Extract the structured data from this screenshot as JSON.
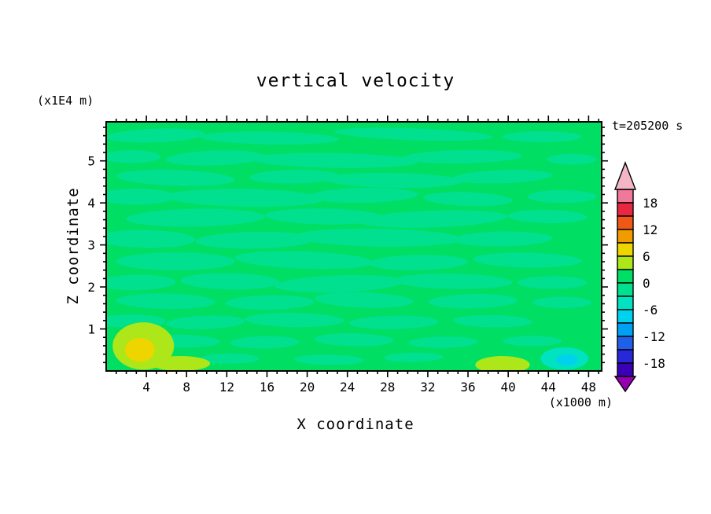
{
  "title": "vertical velocity",
  "time_label": "t=205200 s",
  "axes": {
    "x_label": "X coordinate",
    "y_label": "Z coordinate",
    "x_unit": "(x1000 m)",
    "y_unit": "(x1E4 m)"
  },
  "chart_data": {
    "type": "heatmap",
    "title": "vertical velocity",
    "xlabel": "X coordinate",
    "ylabel": "Z coordinate",
    "x_unit_scale": "(x1000 m)",
    "y_unit_scale": "(x1E4 m)",
    "time": "t=205200 s",
    "xlim": [
      0,
      49.3
    ],
    "ylim": [
      0,
      5.93
    ],
    "x_major_ticks": [
      4,
      8,
      12,
      16,
      20,
      24,
      28,
      32,
      36,
      40,
      44,
      48
    ],
    "x_minor_step": 1,
    "y_major_ticks": [
      1,
      2,
      3,
      4,
      5
    ],
    "y_minor_step": 0.2,
    "grid": false,
    "legend_position": "right-colorbar",
    "levels": [
      {
        "from": 18,
        "to": 21,
        "color": "#F07898"
      },
      {
        "from": 15,
        "to": 18,
        "color": "#E82840"
      },
      {
        "from": 12,
        "to": 15,
        "color": "#F05818"
      },
      {
        "from": 9,
        "to": 12,
        "color": "#F09C00"
      },
      {
        "from": 6,
        "to": 9,
        "color": "#EED500"
      },
      {
        "from": 3,
        "to": 6,
        "color": "#ADE619"
      },
      {
        "from": 0,
        "to": 3,
        "color": "#00DE64"
      },
      {
        "from": -3,
        "to": 0,
        "color": "#00E08E"
      },
      {
        "from": -6,
        "to": -3,
        "color": "#00E2C0"
      },
      {
        "from": -9,
        "to": -6,
        "color": "#00D2EE"
      },
      {
        "from": -12,
        "to": -9,
        "color": "#00A0F5"
      },
      {
        "from": -15,
        "to": -12,
        "color": "#2060E8"
      },
      {
        "from": -18,
        "to": -15,
        "color": "#2828D8"
      },
      {
        "from": -21,
        "to": -18,
        "color": "#3C00B4"
      }
    ],
    "colorbar": {
      "label_values": [
        "18",
        "12",
        "6",
        "0",
        "-6",
        "-12",
        "-18"
      ],
      "label_step": 6,
      "top_arrow_color": "#F2B6C6",
      "bottom_arrow_color": "#9400B0"
    },
    "field": {
      "description": "near-zero vertical velocity everywhere; weak positive anomaly (3-9) near x=3-5 z<1; weak negative anomaly (-3 to -9) near x=45 z<0.5",
      "background_level": 6,
      "blobs": [
        [
          0.1,
          0.055,
          0.1,
          0.028,
          -2,
          7
        ],
        [
          0.33,
          0.065,
          0.14,
          0.026,
          1,
          7
        ],
        [
          0.62,
          0.05,
          0.16,
          0.024,
          2,
          7
        ],
        [
          0.88,
          0.06,
          0.08,
          0.022,
          0,
          7
        ],
        [
          0.05,
          0.14,
          0.06,
          0.026,
          0,
          7
        ],
        [
          0.22,
          0.145,
          0.1,
          0.03,
          -2,
          7
        ],
        [
          0.46,
          0.155,
          0.17,
          0.03,
          1,
          7
        ],
        [
          0.72,
          0.14,
          0.12,
          0.027,
          -1,
          7
        ],
        [
          0.94,
          0.15,
          0.05,
          0.022,
          0,
          7
        ],
        [
          0.14,
          0.225,
          0.12,
          0.032,
          2,
          7
        ],
        [
          0.38,
          0.22,
          0.09,
          0.028,
          -1,
          7
        ],
        [
          0.58,
          0.235,
          0.14,
          0.03,
          1,
          7
        ],
        [
          0.8,
          0.22,
          0.1,
          0.027,
          -2,
          7
        ],
        [
          0.06,
          0.3,
          0.08,
          0.032,
          0,
          7
        ],
        [
          0.28,
          0.305,
          0.16,
          0.036,
          1,
          7
        ],
        [
          0.52,
          0.295,
          0.11,
          0.03,
          -1,
          7
        ],
        [
          0.73,
          0.31,
          0.09,
          0.028,
          2,
          7
        ],
        [
          0.92,
          0.3,
          0.07,
          0.026,
          0,
          7
        ],
        [
          0.18,
          0.385,
          0.14,
          0.036,
          -1,
          7
        ],
        [
          0.44,
          0.38,
          0.12,
          0.032,
          1,
          7
        ],
        [
          0.66,
          0.39,
          0.15,
          0.034,
          -2,
          7
        ],
        [
          0.89,
          0.38,
          0.08,
          0.027,
          1,
          7
        ],
        [
          0.08,
          0.47,
          0.1,
          0.036,
          1,
          7
        ],
        [
          0.3,
          0.475,
          0.12,
          0.034,
          -1,
          7
        ],
        [
          0.55,
          0.465,
          0.17,
          0.036,
          1,
          7
        ],
        [
          0.8,
          0.47,
          0.1,
          0.03,
          -1,
          7
        ],
        [
          0.14,
          0.56,
          0.12,
          0.036,
          0,
          7
        ],
        [
          0.4,
          0.555,
          0.14,
          0.035,
          2,
          7
        ],
        [
          0.63,
          0.565,
          0.1,
          0.031,
          -1,
          7
        ],
        [
          0.85,
          0.555,
          0.11,
          0.03,
          1,
          7
        ],
        [
          0.06,
          0.645,
          0.08,
          0.031,
          -1,
          7
        ],
        [
          0.25,
          0.64,
          0.1,
          0.033,
          1,
          7
        ],
        [
          0.47,
          0.65,
          0.13,
          0.034,
          -2,
          7
        ],
        [
          0.7,
          0.64,
          0.12,
          0.031,
          1,
          7
        ],
        [
          0.9,
          0.645,
          0.07,
          0.026,
          0,
          7
        ],
        [
          0.12,
          0.72,
          0.1,
          0.031,
          1,
          7
        ],
        [
          0.33,
          0.725,
          0.09,
          0.029,
          -1,
          7
        ],
        [
          0.52,
          0.715,
          0.1,
          0.031,
          2,
          7
        ],
        [
          0.74,
          0.72,
          0.09,
          0.029,
          -1,
          7
        ],
        [
          0.92,
          0.725,
          0.06,
          0.023,
          0,
          7
        ],
        [
          0.05,
          0.8,
          0.07,
          0.027,
          0,
          7
        ],
        [
          0.2,
          0.805,
          0.08,
          0.027,
          -2,
          7
        ],
        [
          0.38,
          0.795,
          0.1,
          0.029,
          1,
          7
        ],
        [
          0.58,
          0.805,
          0.09,
          0.027,
          -1,
          7
        ],
        [
          0.78,
          0.8,
          0.08,
          0.025,
          1,
          7
        ],
        [
          0.15,
          0.88,
          0.08,
          0.026,
          1,
          7
        ],
        [
          0.32,
          0.885,
          0.07,
          0.025,
          -1,
          7
        ],
        [
          0.5,
          0.875,
          0.08,
          0.026,
          1,
          7
        ],
        [
          0.68,
          0.885,
          0.07,
          0.023,
          -1,
          7
        ],
        [
          0.86,
          0.88,
          0.06,
          0.021,
          0,
          7
        ],
        [
          0.25,
          0.95,
          0.06,
          0.021,
          0,
          7
        ],
        [
          0.45,
          0.955,
          0.07,
          0.021,
          1,
          7
        ],
        [
          0.62,
          0.945,
          0.06,
          0.019,
          -1,
          7
        ],
        [
          0.075,
          0.9,
          0.062,
          0.095,
          0,
          5
        ],
        [
          0.15,
          0.97,
          0.06,
          0.03,
          0,
          5
        ],
        [
          0.068,
          0.915,
          0.03,
          0.048,
          0,
          4
        ],
        [
          0.8,
          0.975,
          0.055,
          0.035,
          0,
          5
        ],
        [
          0.925,
          0.95,
          0.048,
          0.045,
          0,
          8
        ],
        [
          0.93,
          0.955,
          0.022,
          0.022,
          0,
          9
        ]
      ]
    }
  }
}
